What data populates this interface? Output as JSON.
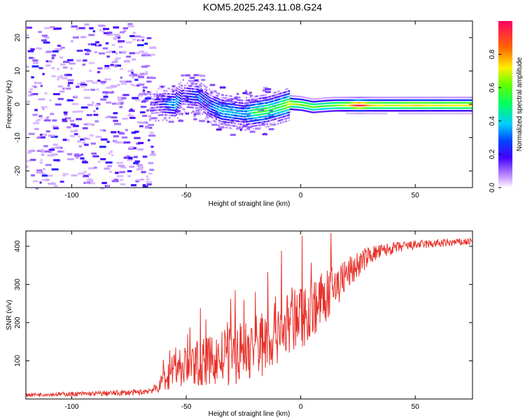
{
  "title": "KOM5.2025.243.11.08.G24",
  "chart_data": [
    {
      "type": "heatmap",
      "xlabel": "Height of straight line (km)",
      "ylabel": "Frequency (Hz)",
      "xlim": [
        -120,
        75
      ],
      "ylim": [
        -25,
        25
      ],
      "xticks": [
        -100,
        -50,
        0,
        50
      ],
      "yticks": [
        -20,
        -10,
        0,
        10,
        20
      ],
      "colorbar": {
        "label": "Normalized spectral amplitude",
        "range": [
          0,
          1
        ],
        "ticks": [
          "0.0",
          "0.2",
          "0.4",
          "0.6",
          "0.8"
        ],
        "tick_values": [
          0.0,
          0.2,
          0.4,
          0.6,
          0.8
        ]
      },
      "ridge": [
        {
          "x": -65,
          "f": 0.2,
          "a": 0.08
        },
        {
          "x": -60,
          "f": 0.5,
          "a": 0.22
        },
        {
          "x": -55,
          "f": 0.2,
          "a": 0.4
        },
        {
          "x": -52,
          "f": 3.0,
          "a": 0.16
        },
        {
          "x": -45,
          "f": 2.5,
          "a": 0.3
        },
        {
          "x": -40,
          "f": 0.0,
          "a": 0.25
        },
        {
          "x": -35,
          "f": -1.5,
          "a": 0.4
        },
        {
          "x": -30,
          "f": -2.0,
          "a": 0.38
        },
        {
          "x": -25,
          "f": -2.5,
          "a": 0.32
        },
        {
          "x": -20,
          "f": -2.0,
          "a": 0.55
        },
        {
          "x": -15,
          "f": -1.5,
          "a": 0.55
        },
        {
          "x": -10,
          "f": -0.5,
          "a": 0.5
        },
        {
          "x": -5,
          "f": 0.5,
          "a": 0.7
        },
        {
          "x": 0,
          "f": 0.2,
          "a": 0.62
        },
        {
          "x": 5,
          "f": -0.5,
          "a": 0.6
        },
        {
          "x": 10,
          "f": -0.2,
          "a": 0.55
        },
        {
          "x": 15,
          "f": 0.0,
          "a": 0.62
        },
        {
          "x": 20,
          "f": 0.0,
          "a": 0.7
        },
        {
          "x": 25,
          "f": 0.0,
          "a": 0.98
        },
        {
          "x": 30,
          "f": 0.0,
          "a": 0.75
        },
        {
          "x": 40,
          "f": 0.0,
          "a": 0.68
        },
        {
          "x": 50,
          "f": 0.0,
          "a": 0.75
        },
        {
          "x": 60,
          "f": 0.0,
          "a": 0.7
        },
        {
          "x": 70,
          "f": 0.0,
          "a": 0.72
        }
      ]
    },
    {
      "type": "line",
      "xlabel": "Height of straight line (km)",
      "ylabel": "SNR (v/v)",
      "xlim": [
        -120,
        75
      ],
      "ylim": [
        0,
        440
      ],
      "xticks": [
        -100,
        -50,
        0,
        50
      ],
      "yticks": [
        100,
        200,
        300,
        400
      ],
      "color": "#e8312a",
      "envelope": [
        {
          "x": -120,
          "base": 10,
          "amp": 6
        },
        {
          "x": -90,
          "base": 12,
          "amp": 8
        },
        {
          "x": -70,
          "base": 15,
          "amp": 10
        },
        {
          "x": -62,
          "base": 25,
          "amp": 15
        },
        {
          "x": -58,
          "base": 60,
          "amp": 70
        },
        {
          "x": -50,
          "base": 70,
          "amp": 70
        },
        {
          "x": -40,
          "base": 80,
          "amp": 80
        },
        {
          "x": -30,
          "base": 90,
          "amp": 100
        },
        {
          "x": -20,
          "base": 110,
          "amp": 110
        },
        {
          "x": -10,
          "base": 150,
          "amp": 120
        },
        {
          "x": 0,
          "base": 190,
          "amp": 110
        },
        {
          "x": 10,
          "base": 240,
          "amp": 90
        },
        {
          "x": 20,
          "base": 310,
          "amp": 60
        },
        {
          "x": 30,
          "base": 370,
          "amp": 30
        },
        {
          "x": 40,
          "base": 390,
          "amp": 20
        },
        {
          "x": 50,
          "base": 400,
          "amp": 15
        },
        {
          "x": 75,
          "base": 410,
          "amp": 12
        }
      ]
    }
  ]
}
